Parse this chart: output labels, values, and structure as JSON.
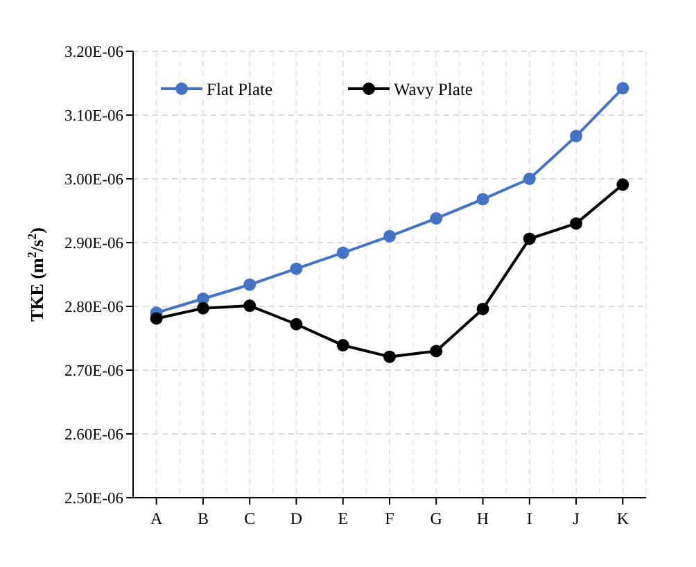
{
  "chart_data": {
    "type": "line",
    "ylabel": "TKE (m$^{2}$/s$^{2}$)",
    "categories": [
      "A",
      "B",
      "C",
      "D",
      "E",
      "F",
      "G",
      "H",
      "I",
      "J",
      "K"
    ],
    "series": [
      {
        "name": "Flat Plate",
        "color": "#4472c4",
        "values": [
          2.79e-06,
          2.812e-06,
          2.834e-06,
          2.859e-06,
          2.884e-06,
          2.91e-06,
          2.938e-06,
          2.968e-06,
          3e-06,
          3.067e-06,
          3.142e-06
        ]
      },
      {
        "name": "Wavy Plate",
        "color": "#000000",
        "values": [
          2.781e-06,
          2.797e-06,
          2.801e-06,
          2.772e-06,
          2.739e-06,
          2.721e-06,
          2.73e-06,
          2.796e-06,
          2.906e-06,
          2.93e-06,
          2.991e-06
        ]
      }
    ],
    "ylim": [
      2.5e-06,
      3.2e-06
    ],
    "yticks": [
      {
        "value": 2.5e-06,
        "label": "2.50E-06"
      },
      {
        "value": 2.6e-06,
        "label": "2.60E-06"
      },
      {
        "value": 2.7e-06,
        "label": "2.70E-06"
      },
      {
        "value": 2.8e-06,
        "label": "2.80E-06"
      },
      {
        "value": 2.9e-06,
        "label": "2.90E-06"
      },
      {
        "value": 3e-06,
        "label": "3.00E-06"
      },
      {
        "value": 3.1e-06,
        "label": "3.10E-06"
      },
      {
        "value": 3.2e-06,
        "label": "3.20E-06"
      }
    ],
    "grid": true,
    "legend": "top",
    "marker": "circle",
    "line_style": "solid"
  }
}
